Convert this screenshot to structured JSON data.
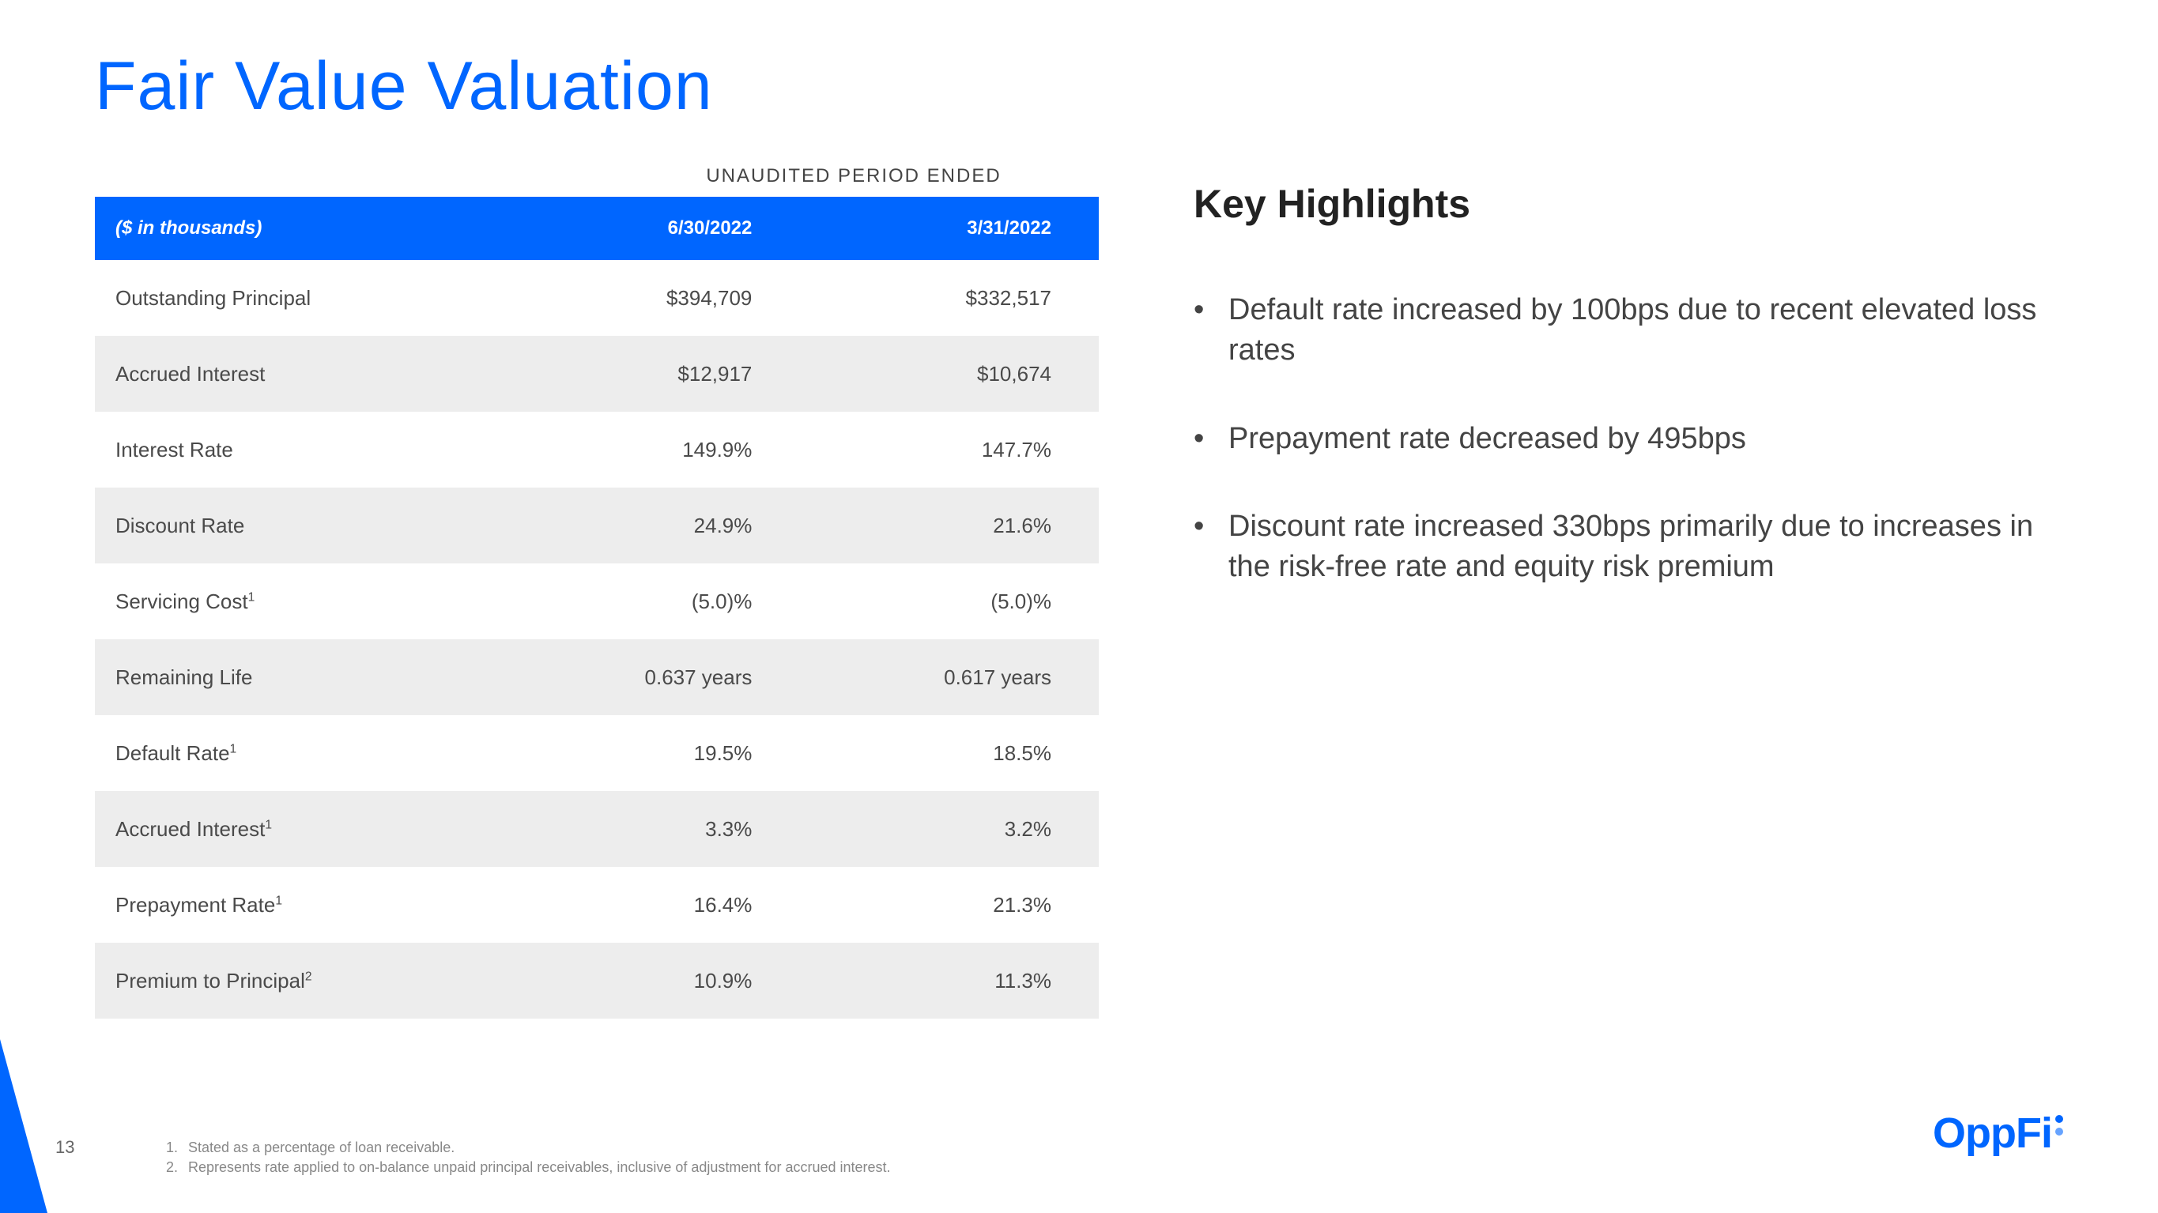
{
  "page": {
    "title": "Fair Value Valuation",
    "page_number": "13"
  },
  "colors": {
    "brand_blue": "#0066ff",
    "header_bg": "#0066ff",
    "header_text": "#ffffff",
    "row_alt_bg": "#ededed",
    "body_text": "#4a4a4a",
    "dot1": "#0066ff",
    "dot2": "#66a3ff"
  },
  "table": {
    "period_label": "UNAUDITED PERIOD ENDED",
    "header": {
      "label": "($ in thousands)",
      "col1": "6/30/2022",
      "col2": "3/31/2022"
    },
    "rows": [
      {
        "label": "Outstanding Principal",
        "sup": "",
        "c1": "$394,709",
        "c2": "$332,517"
      },
      {
        "label": "Accrued Interest",
        "sup": "",
        "c1": "$12,917",
        "c2": "$10,674"
      },
      {
        "label": "Interest Rate",
        "sup": "",
        "c1": "149.9%",
        "c2": "147.7%"
      },
      {
        "label": "Discount Rate",
        "sup": "",
        "c1": "24.9%",
        "c2": "21.6%"
      },
      {
        "label": "Servicing Cost",
        "sup": "1",
        "c1": "(5.0)%",
        "c2": "(5.0)%"
      },
      {
        "label": "Remaining Life",
        "sup": "",
        "c1": "0.637 years",
        "c2": "0.617 years"
      },
      {
        "label": "Default Rate",
        "sup": "1",
        "c1": "19.5%",
        "c2": "18.5%"
      },
      {
        "label": "Accrued Interest",
        "sup": "1",
        "c1": "3.3%",
        "c2": "3.2%"
      },
      {
        "label": "Prepayment Rate",
        "sup": "1",
        "c1": "16.4%",
        "c2": "21.3%"
      },
      {
        "label": "Premium to Principal",
        "sup": "2",
        "c1": "10.9%",
        "c2": "11.3%"
      }
    ]
  },
  "highlights": {
    "title": "Key Highlights",
    "items": [
      "Default rate increased by 100bps due to recent elevated loss rates",
      "Prepayment rate decreased by 495bps",
      "Discount rate increased 330bps primarily due to increases in the risk-free rate and equity risk premium"
    ]
  },
  "footnotes": [
    {
      "n": "1.",
      "text": "Stated as a percentage of loan receivable."
    },
    {
      "n": "2.",
      "text": "Represents rate applied to on-balance unpaid principal receivables, inclusive of adjustment for accrued interest."
    }
  ],
  "logo": {
    "text": "OppFi"
  }
}
